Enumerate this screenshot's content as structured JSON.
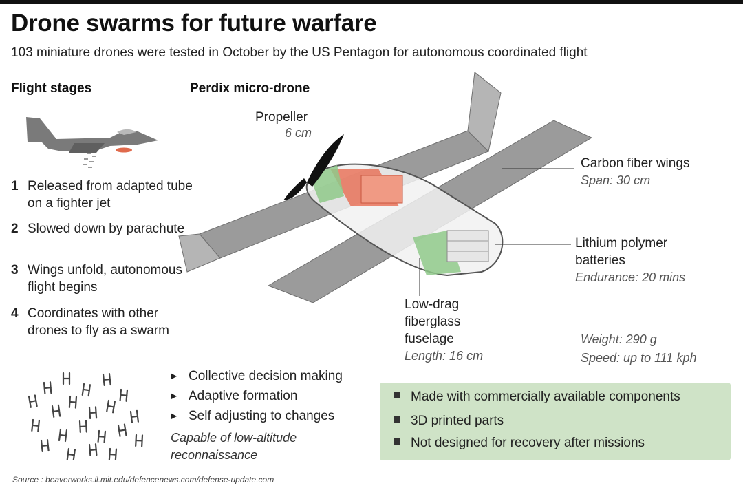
{
  "title": "Drone swarms for future warfare",
  "subtitle": "103 miniature drones were tested in October by the US Pentagon for autonomous coordinated flight",
  "flight_stages": {
    "heading": "Flight stages",
    "steps": [
      {
        "num": "1",
        "text": "Released from adapted tube on a fighter jet"
      },
      {
        "num": "2",
        "text": "Slowed down by parachute"
      },
      {
        "num": "3",
        "text": "Wings unfold, autonomous flight begins"
      },
      {
        "num": "4",
        "text": "Coordinates with other drones to fly as a swarm"
      }
    ]
  },
  "swarm": {
    "bullets": [
      "Collective decision making",
      "Adaptive formation",
      "Self adjusting to changes"
    ],
    "capable": "Capable of low-altitude reconnaissance"
  },
  "drone": {
    "heading": "Perdix micro-drone",
    "propeller": {
      "label": "Propeller",
      "spec": "6 cm"
    },
    "wings": {
      "label": "Carbon fiber wings",
      "spec": "Span: 30 cm"
    },
    "batteries": {
      "label_1": "Lithium polymer",
      "label_2": "batteries",
      "spec": "Endurance: 20 mins"
    },
    "fuselage": {
      "label_1": "Low-drag",
      "label_2": "fiberglass",
      "label_3": "fuselage",
      "spec": "Length: 16 cm"
    },
    "weight": "Weight: 290 g",
    "speed": "Speed: up to 111 kph"
  },
  "features": [
    "Made with commercially available components",
    "3D printed parts",
    "Not designed for recovery after missions"
  ],
  "source": "Source : beaverworks.ll.mit.edu/defencenews.com/defense-update.com",
  "colors": {
    "drone_grey": "#8c8c8c",
    "highlight_red": "#e8735a",
    "highlight_green": "#8fc98a",
    "box_green": "#cfe3c7"
  }
}
